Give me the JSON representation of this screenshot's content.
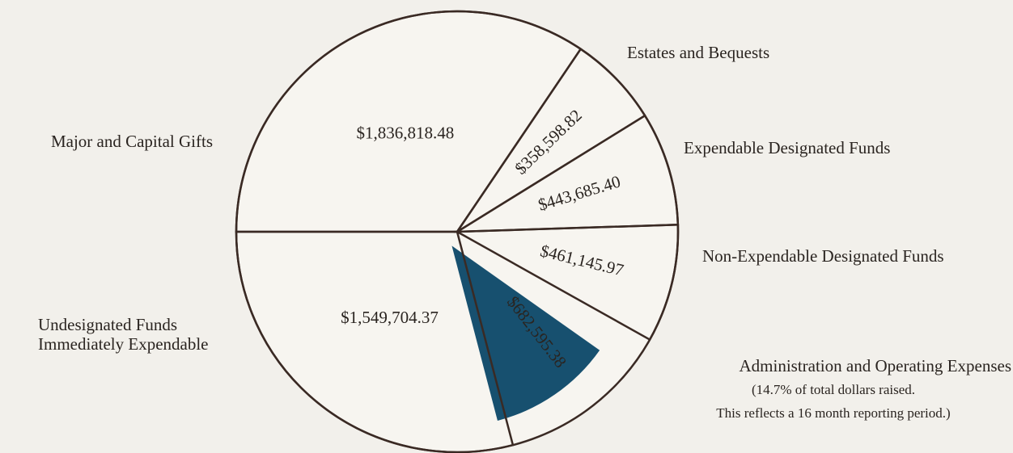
{
  "chart_data": {
    "type": "pie",
    "categories": [
      "Major and Capital Gifts",
      "Estates and Bequests",
      "Expendable Designated Funds",
      "Non-Expendable Designated Funds",
      "Administration and Operating Expenses",
      "Undesignated Funds Immediately Expendable"
    ],
    "values": [
      1836818.48,
      358598.82,
      443685.4,
      461145.97,
      682595.38,
      1549704.37
    ],
    "value_labels": [
      "$1,836,818.48",
      "$358,598.82",
      "$443,685.40",
      "$461,145.97",
      "$682,595.38",
      "$1,549,704.37"
    ],
    "colors": [
      "none",
      "none",
      "none",
      "none",
      "#17506f",
      "none"
    ],
    "notes": [
      "(14.7% of total dollars raised.",
      "This reflects a 16 month reporting period.)"
    ]
  }
}
